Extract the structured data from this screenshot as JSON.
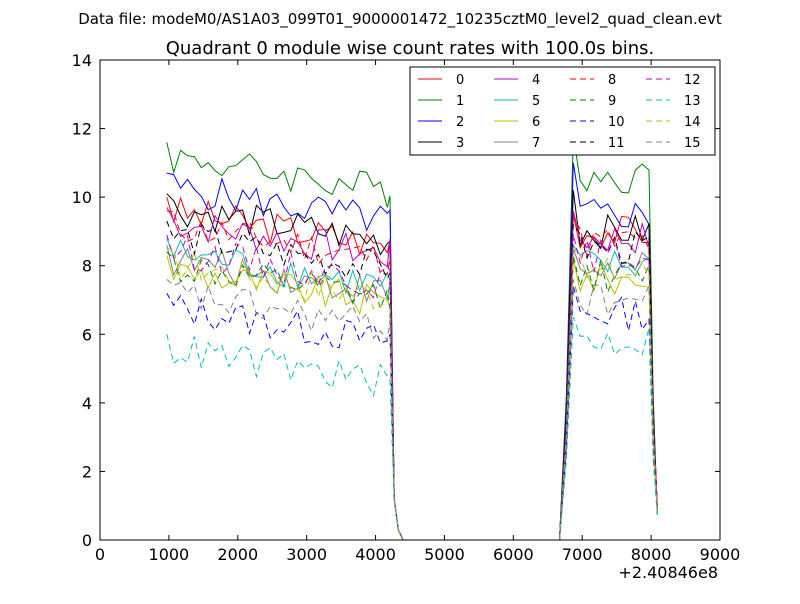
{
  "chart_data": {
    "type": "line",
    "suptitle": "Data file: modeM0/AS1A03_099T01_9000001472_10235cztM0_level2_quad_clean.evt",
    "title": "Quadrant 0 module wise count rates with 100.0s bins.",
    "xlabel": "",
    "ylabel": "",
    "x_offset_label": "+2.40846e8",
    "xlim": [
      0,
      9000
    ],
    "ylim": [
      0,
      14
    ],
    "x_ticks": [
      0,
      1000,
      2000,
      3000,
      4000,
      5000,
      6000,
      7000,
      8000,
      9000
    ],
    "y_ticks": [
      0,
      2,
      4,
      6,
      8,
      10,
      12,
      14
    ],
    "x_tick_labels": [
      "0",
      "1000",
      "2000",
      "3000",
      "4000",
      "5000",
      "6000",
      "7000",
      "8000",
      "9000"
    ],
    "y_tick_labels": [
      "0",
      "2",
      "4",
      "6",
      "8",
      "10",
      "12",
      "14"
    ],
    "grid": false,
    "legend_position": "top-right",
    "bins_segment1": [
      970,
      1070,
      1170,
      1270,
      1370,
      1470,
      1570,
      1670,
      1770,
      1870,
      1970,
      2070,
      2170,
      2270,
      2370,
      2470,
      2570,
      2670,
      2770,
      2870,
      2970,
      3070,
      3170,
      3270,
      3370,
      3470,
      3570,
      3670,
      3770,
      3870,
      3970,
      4070,
      4170,
      4210,
      4270,
      4330,
      4400
    ],
    "bins_segment2": [
      4400,
      4600,
      4800,
      5000,
      5200,
      5400,
      5600,
      5800,
      6000,
      6200,
      6400,
      6600,
      6670
    ],
    "bins_segment3": [
      6670,
      6770,
      6870,
      6970,
      7070,
      7170,
      7270,
      7370,
      7470,
      7570,
      7670,
      7770,
      7870,
      7970,
      8030,
      8090
    ],
    "series": [
      {
        "name": "0",
        "color": "#ff0000",
        "dash": "solid",
        "level1": 9.6,
        "level2": 9.0,
        "peak2": 9.5
      },
      {
        "name": "1",
        "color": "#008000",
        "dash": "solid",
        "level1": 11.2,
        "level2": 10.6,
        "peak2": 11.8
      },
      {
        "name": "2",
        "color": "#0000ff",
        "dash": "solid",
        "level1": 10.3,
        "level2": 9.5,
        "peak2": 11.0
      },
      {
        "name": "3",
        "color": "#000000",
        "dash": "solid",
        "level1": 9.7,
        "level2": 9.0,
        "peak2": 10.2
      },
      {
        "name": "4",
        "color": "#bf00bf",
        "dash": "solid",
        "level1": 9.3,
        "level2": 8.8,
        "peak2": 9.6
      },
      {
        "name": "5",
        "color": "#00bfbf",
        "dash": "solid",
        "level1": 8.4,
        "level2": 8.0,
        "peak2": 8.6
      },
      {
        "name": "6",
        "color": "#bfbf00",
        "dash": "solid",
        "level1": 7.9,
        "level2": 7.6,
        "peak2": 8.2
      },
      {
        "name": "7",
        "color": "#808080",
        "dash": "solid",
        "level1": 8.2,
        "level2": 7.9,
        "peak2": 8.5
      },
      {
        "name": "8",
        "color": "#ff0000",
        "dash": "dashed",
        "level1": 9.2,
        "level2": 8.7,
        "peak2": 9.4
      },
      {
        "name": "9",
        "color": "#008000",
        "dash": "dashed",
        "level1": 8.0,
        "level2": 7.7,
        "peak2": 8.3
      },
      {
        "name": "10",
        "color": "#0000ff",
        "dash": "dashed",
        "level1": 6.8,
        "level2": 6.6,
        "peak2": 7.4
      },
      {
        "name": "11",
        "color": "#000000",
        "dash": "dashed",
        "level1": 8.9,
        "level2": 8.5,
        "peak2": 9.2
      },
      {
        "name": "12",
        "color": "#bf00bf",
        "dash": "dashed",
        "level1": 8.5,
        "level2": 8.3,
        "peak2": 8.9
      },
      {
        "name": "13",
        "color": "#00bfbf",
        "dash": "dashed",
        "level1": 5.6,
        "level2": 5.8,
        "peak2": 6.5
      },
      {
        "name": "14",
        "color": "#bfbf00",
        "dash": "dashed",
        "level1": 8.1,
        "level2": 7.8,
        "peak2": 8.5
      },
      {
        "name": "15",
        "color": "#808080",
        "dash": "dashed",
        "level1": 7.2,
        "level2": 7.0,
        "peak2": 7.6
      }
    ]
  }
}
